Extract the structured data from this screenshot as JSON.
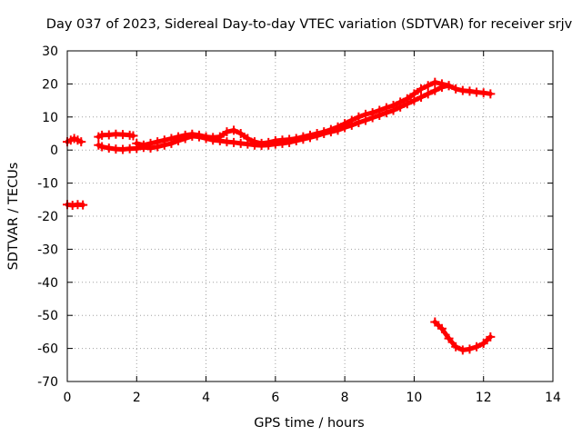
{
  "chart_data": {
    "type": "scatter",
    "title": "Day 037 of 2023, Sidereal Day-to-day VTEC variation (SDTVAR) for receiver srjv",
    "xlabel": "GPS time / hours",
    "ylabel": "SDTVAR / TECUs",
    "xlim": [
      0,
      14
    ],
    "ylim": [
      -70,
      30
    ],
    "xticks": [
      0,
      2,
      4,
      6,
      8,
      10,
      12,
      14
    ],
    "yticks": [
      -70,
      -60,
      -50,
      -40,
      -30,
      -20,
      -10,
      0,
      10,
      20,
      30
    ],
    "grid": true,
    "legend": "none",
    "series_color": "#ff0000",
    "series": [
      {
        "x": [
          0.0,
          0.1,
          0.2,
          0.3,
          0.4
        ],
        "y": [
          2.5,
          3.0,
          3.5,
          3.0,
          2.5
        ]
      },
      {
        "x": [
          0.0,
          0.15,
          0.3,
          0.45
        ],
        "y": [
          -16.5,
          -16.7,
          -16.5,
          -16.6
        ]
      },
      {
        "x": [
          0.9,
          1.0,
          1.2,
          1.4,
          1.6,
          1.8,
          1.9
        ],
        "y": [
          4.0,
          4.5,
          4.6,
          4.8,
          4.7,
          4.5,
          4.3
        ]
      },
      {
        "x": [
          0.9,
          1.0,
          1.2,
          1.4,
          1.6,
          1.8,
          2.0,
          2.2,
          2.4,
          2.6,
          2.8,
          3.0,
          3.2,
          3.4,
          3.6,
          3.8,
          4.0,
          4.2,
          4.4,
          4.6,
          4.8,
          5.0,
          5.2,
          5.4,
          5.6,
          5.8,
          6.0,
          6.2,
          6.4,
          6.6,
          6.8,
          7.0,
          7.2,
          7.4,
          7.6,
          7.8,
          8.0,
          8.2,
          8.4,
          8.6,
          8.8,
          9.0,
          9.2,
          9.4,
          9.6,
          9.8,
          10.0,
          10.2,
          10.4,
          10.6,
          10.8,
          11.0,
          11.2,
          11.4,
          11.6,
          11.8,
          12.0,
          12.2
        ],
        "y": [
          1.5,
          1.0,
          0.6,
          0.3,
          0.2,
          0.4,
          0.5,
          0.8,
          0.6,
          1.0,
          1.5,
          2.0,
          2.8,
          3.5,
          4.2,
          4.0,
          3.5,
          3.0,
          2.8,
          2.5,
          2.3,
          2.0,
          1.8,
          1.5,
          1.4,
          1.5,
          1.8,
          2.0,
          2.3,
          2.8,
          3.3,
          3.8,
          4.3,
          5.0,
          5.5,
          6.0,
          6.8,
          7.5,
          8.3,
          9.0,
          9.8,
          10.5,
          11.3,
          12.0,
          13.0,
          14.0,
          15.0,
          16.0,
          17.0,
          18.0,
          19.0,
          19.5,
          18.5,
          18.0,
          17.8,
          17.5,
          17.3,
          17.0
        ]
      },
      {
        "x": [
          2.0,
          2.2,
          2.4,
          2.6,
          2.8,
          3.0,
          3.2,
          3.4,
          3.6,
          3.8,
          4.0,
          4.2,
          4.4,
          4.6,
          4.8,
          5.0,
          5.2,
          5.4,
          5.6,
          5.8,
          6.0,
          6.2,
          6.4,
          6.6,
          6.8,
          7.0,
          7.2,
          7.4,
          7.6,
          7.8,
          8.0,
          8.2,
          8.4,
          8.6,
          8.8,
          9.0,
          9.2,
          9.4,
          9.6,
          9.8,
          10.0,
          10.2,
          10.4,
          10.6,
          10.8,
          11.0
        ],
        "y": [
          2.0,
          1.5,
          2.0,
          2.5,
          3.0,
          3.5,
          4.0,
          4.5,
          4.8,
          4.5,
          4.0,
          3.8,
          4.0,
          5.5,
          6.0,
          5.0,
          3.5,
          2.5,
          2.0,
          2.3,
          2.8,
          3.0,
          3.2,
          3.5,
          4.0,
          4.5,
          5.0,
          5.5,
          6.2,
          7.0,
          8.0,
          9.0,
          10.0,
          10.8,
          11.3,
          12.0,
          12.8,
          13.5,
          14.5,
          15.5,
          17.0,
          18.5,
          19.5,
          20.5,
          20.0,
          19.5
        ]
      },
      {
        "x": [
          10.6,
          10.8,
          11.0,
          11.2,
          11.4,
          11.6,
          11.8,
          12.0,
          12.2
        ],
        "y": [
          -52.0,
          -54.0,
          -57.0,
          -59.5,
          -60.5,
          -60.2,
          -59.5,
          -58.5,
          -56.5
        ]
      }
    ]
  }
}
